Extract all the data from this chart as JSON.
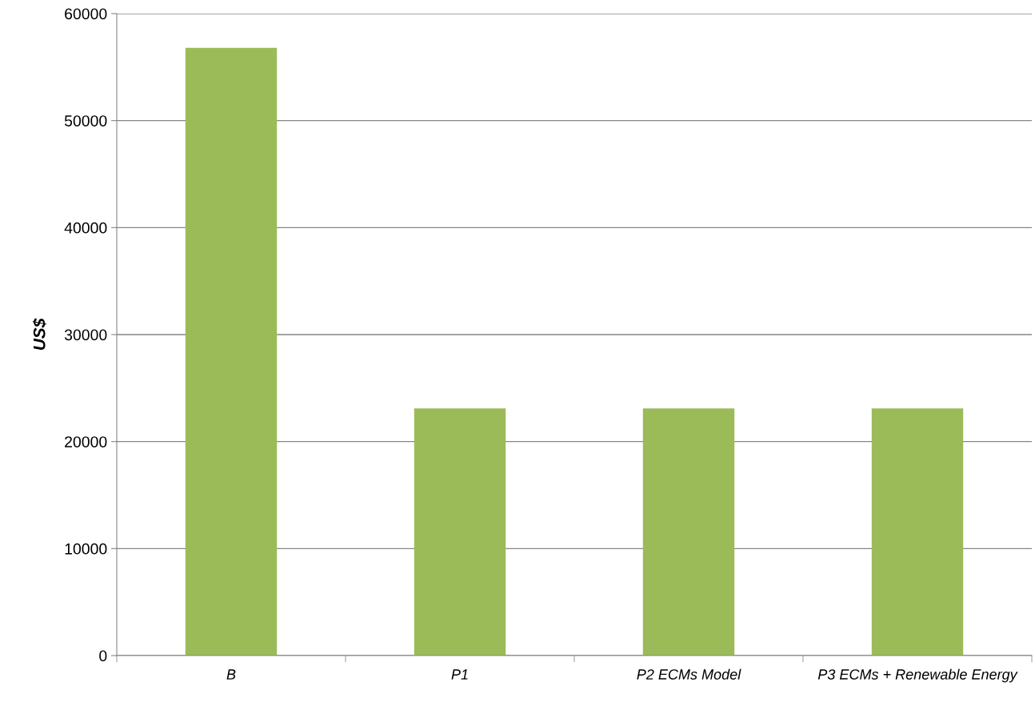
{
  "chart_data": {
    "type": "bar",
    "ylabel": "US$",
    "categories": [
      "B",
      "P1",
      "P2 ECMs Model",
      "P3 ECMs + Renewable Energy"
    ],
    "values": [
      56800,
      23100,
      23100,
      23100
    ],
    "color": "#9bbb59",
    "ylim": [
      0,
      60000
    ],
    "yticks": [
      0,
      10000,
      20000,
      30000,
      40000,
      50000,
      60000
    ],
    "grid": "y",
    "legend": false
  }
}
